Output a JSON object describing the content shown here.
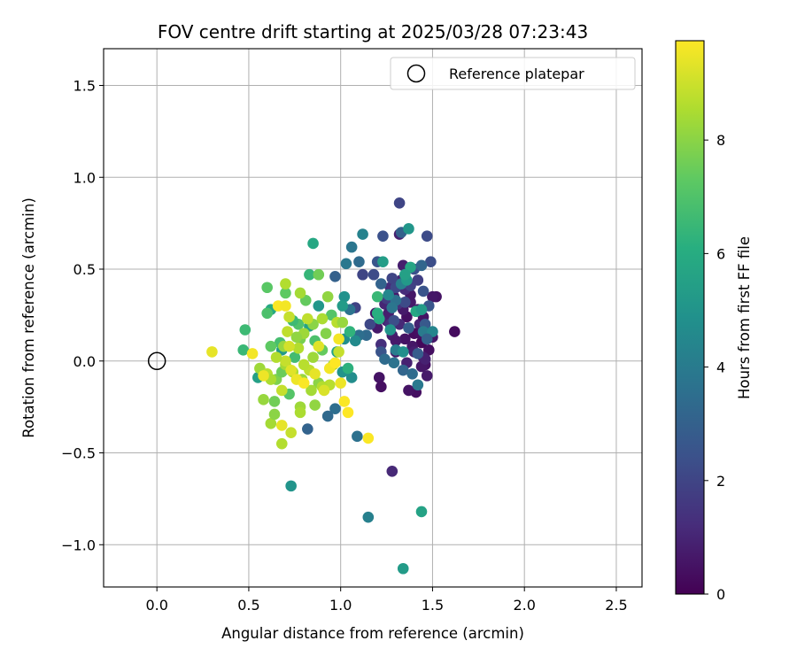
{
  "chart_data": {
    "type": "scatter",
    "title": "FOV centre drift starting at 2025/03/28 07:23:43",
    "xlabel": "Angular distance from reference (arcmin)",
    "ylabel": "Rotation from reference (arcmin)",
    "xlim": [
      -0.29,
      2.64
    ],
    "ylim": [
      -1.23,
      1.7
    ],
    "xticks": [
      0.0,
      0.5,
      1.0,
      1.5,
      2.0,
      2.5
    ],
    "yticks": [
      -1.0,
      -0.5,
      0.0,
      0.5,
      1.0,
      1.5
    ],
    "xtick_labels": [
      "0.0",
      "0.5",
      "1.0",
      "1.5",
      "2.0",
      "2.5"
    ],
    "ytick_labels": [
      "−1.0",
      "−0.5",
      "0.0",
      "0.5",
      "1.0",
      "1.5"
    ],
    "grid": true,
    "legend": {
      "placement": "top-right",
      "entries": [
        {
          "label": "Reference platepar",
          "marker": "open-circle"
        }
      ]
    },
    "reference_point": {
      "x": 0.0,
      "y": 0.0
    },
    "colorbar": {
      "label": "Hours from first FF file",
      "colormap": "viridis",
      "range": [
        0,
        9.75
      ],
      "ticks": [
        0,
        2,
        4,
        6,
        8
      ],
      "tick_labels": [
        "0",
        "2",
        "4",
        "6",
        "8"
      ]
    },
    "points": [
      [
        1.62,
        0.16,
        0.3
      ],
      [
        1.52,
        0.35,
        0.5
      ],
      [
        1.5,
        0.35,
        0.6
      ],
      [
        1.48,
        0.06,
        0.4
      ],
      [
        1.47,
        -0.08,
        0.7
      ],
      [
        1.46,
        -0.02,
        0.5
      ],
      [
        1.45,
        0.02,
        0.8
      ],
      [
        1.44,
        0.1,
        0.2
      ],
      [
        1.43,
        0.2,
        0.9
      ],
      [
        1.42,
        0.28,
        0.6
      ],
      [
        1.4,
        0.15,
        0.3
      ],
      [
        1.41,
        -0.17,
        0.4
      ],
      [
        1.39,
        0.08,
        0.6
      ],
      [
        1.38,
        0.32,
        0.7
      ],
      [
        1.36,
        0.24,
        0.4
      ],
      [
        1.35,
        0.12,
        0.5
      ],
      [
        1.34,
        0.52,
        0.8
      ],
      [
        1.33,
        0.44,
        1.0
      ],
      [
        1.32,
        0.69,
        0.9
      ],
      [
        1.32,
        0.2,
        1.1
      ],
      [
        1.3,
        0.05,
        0.6
      ],
      [
        1.29,
        0.35,
        0.7
      ],
      [
        1.28,
        0.14,
        0.8
      ],
      [
        1.27,
        0.4,
        1.2
      ],
      [
        1.25,
        0.22,
        0.9
      ],
      [
        1.24,
        0.31,
        1.0
      ],
      [
        1.22,
        0.09,
        1.3
      ],
      [
        1.21,
        -0.09,
        0.5
      ],
      [
        1.2,
        0.18,
        0.7
      ],
      [
        1.19,
        0.26,
        0.6
      ],
      [
        1.22,
        -0.14,
        0.4
      ],
      [
        1.37,
        -0.16,
        0.5
      ],
      [
        1.44,
        -0.03,
        0.6
      ],
      [
        1.45,
        0.24,
        0.5
      ],
      [
        1.38,
        0.36,
        0.6
      ],
      [
        1.34,
        0.28,
        0.7
      ],
      [
        1.4,
        0.05,
        0.8
      ],
      [
        1.43,
        0.15,
        0.4
      ],
      [
        1.5,
        0.13,
        0.6
      ],
      [
        1.36,
        -0.01,
        0.9
      ],
      [
        1.26,
        0.26,
        0.8
      ],
      [
        1.3,
        0.11,
        0.7
      ],
      [
        1.28,
        -0.6,
        1.1
      ],
      [
        1.46,
        0.01,
        0.9
      ],
      [
        1.35,
        0.39,
        1.2
      ],
      [
        1.31,
        0.31,
        1.4
      ],
      [
        1.27,
        0.2,
        1.3
      ],
      [
        1.32,
        0.86,
        2.0
      ],
      [
        1.49,
        0.54,
        2.3
      ],
      [
        1.47,
        0.68,
        2.2
      ],
      [
        1.42,
        0.44,
        1.8
      ],
      [
        1.38,
        0.41,
        1.9
      ],
      [
        1.3,
        0.4,
        2.1
      ],
      [
        1.25,
        0.34,
        1.7
      ],
      [
        1.18,
        0.47,
        2.2
      ],
      [
        1.23,
        0.68,
        2.4
      ],
      [
        1.12,
        0.47,
        2.0
      ],
      [
        1.08,
        0.29,
        1.9
      ],
      [
        1.45,
        0.38,
        2.5
      ],
      [
        1.48,
        0.3,
        2.6
      ],
      [
        1.4,
        0.5,
        2.4
      ],
      [
        1.28,
        0.45,
        2.0
      ],
      [
        1.35,
        0.32,
        2.2
      ],
      [
        1.22,
        0.05,
        2.5
      ],
      [
        1.16,
        0.2,
        2.1
      ],
      [
        1.46,
        0.2,
        2.7
      ],
      [
        1.42,
        0.04,
        2.8
      ],
      [
        1.2,
        0.54,
        2.6
      ],
      [
        1.29,
        0.22,
        2.3
      ],
      [
        1.37,
        0.18,
        2.9
      ],
      [
        1.33,
        0.7,
        3.0
      ],
      [
        1.44,
        0.52,
        3.2
      ],
      [
        1.1,
        0.54,
        3.4
      ],
      [
        1.06,
        0.62,
        3.8
      ],
      [
        1.12,
        0.69,
        4.3
      ],
      [
        1.22,
        0.42,
        3.1
      ],
      [
        1.14,
        0.14,
        3.3
      ],
      [
        1.1,
        0.14,
        3.5
      ],
      [
        1.05,
        0.28,
        3.7
      ],
      [
        1.03,
        0.53,
        3.9
      ],
      [
        0.97,
        0.46,
        3.0
      ],
      [
        1.3,
        0.33,
        3.6
      ],
      [
        1.34,
        -0.05,
        3.2
      ],
      [
        1.39,
        -0.07,
        3.4
      ],
      [
        1.45,
        0.16,
        4.0
      ],
      [
        1.5,
        0.16,
        4.4
      ],
      [
        1.33,
        0.42,
        4.2
      ],
      [
        1.28,
        0.29,
        3.8
      ],
      [
        0.97,
        -0.26,
        3.5
      ],
      [
        0.93,
        -0.3,
        3.3
      ],
      [
        0.82,
        -0.37,
        3.1
      ],
      [
        1.09,
        -0.41,
        3.6
      ],
      [
        1.29,
        -0.01,
        3.7
      ],
      [
        1.3,
        0.06,
        4.1
      ],
      [
        1.42,
        -0.13,
        3.9
      ],
      [
        1.24,
        0.01,
        3.4
      ],
      [
        1.47,
        0.12,
        3.0
      ],
      [
        1.26,
        0.36,
        4.5
      ],
      [
        1.15,
        -0.85,
        4.2
      ],
      [
        1.08,
        0.11,
        4.6
      ],
      [
        1.37,
        0.72,
        5.1
      ],
      [
        1.44,
        -0.82,
        5.6
      ],
      [
        1.34,
        -1.13,
        5.3
      ],
      [
        0.73,
        -0.68,
        5.0
      ],
      [
        1.23,
        0.54,
        5.4
      ],
      [
        1.36,
        0.44,
        5.2
      ],
      [
        1.38,
        0.51,
        5.7
      ],
      [
        1.35,
        0.47,
        5.5
      ],
      [
        1.41,
        0.27,
        5.8
      ],
      [
        1.21,
        0.23,
        5.9
      ],
      [
        1.02,
        0.35,
        4.9
      ],
      [
        1.01,
        0.3,
        5.3
      ],
      [
        1.02,
        0.12,
        4.8
      ],
      [
        0.98,
        0.05,
        5.6
      ],
      [
        1.06,
        -0.09,
        4.7
      ],
      [
        1.01,
        -0.06,
        5.0
      ],
      [
        0.85,
        0.64,
        5.8
      ],
      [
        0.68,
        0.06,
        5.2
      ],
      [
        0.55,
        -0.09,
        5.5
      ],
      [
        1.27,
        0.17,
        5.0
      ],
      [
        1.44,
        0.28,
        5.3
      ],
      [
        1.34,
        0.05,
        4.8
      ],
      [
        0.83,
        0.19,
        5.6
      ],
      [
        0.62,
        0.28,
        5.9
      ],
      [
        0.88,
        0.3,
        5.1
      ],
      [
        1.05,
        0.16,
        6.3
      ],
      [
        0.48,
        0.17,
        6.6
      ],
      [
        0.47,
        0.06,
        6.5
      ],
      [
        0.6,
        0.26,
        6.9
      ],
      [
        0.6,
        0.4,
        7.2
      ],
      [
        0.67,
        0.1,
        6.8
      ],
      [
        0.77,
        0.2,
        7.0
      ],
      [
        0.83,
        0.47,
        6.4
      ],
      [
        0.88,
        0.47,
        7.6
      ],
      [
        0.81,
        0.33,
        7.4
      ],
      [
        0.95,
        0.25,
        7.1
      ],
      [
        1.2,
        0.26,
        6.1
      ],
      [
        1.2,
        0.35,
        6.5
      ],
      [
        0.62,
        0.08,
        7.3
      ],
      [
        0.65,
        -0.1,
        7.8
      ],
      [
        0.68,
        -0.06,
        7.5
      ],
      [
        0.72,
        -0.18,
        7.1
      ],
      [
        0.75,
        0.02,
        6.7
      ],
      [
        0.78,
        0.12,
        7.7
      ],
      [
        0.86,
        0.11,
        6.9
      ],
      [
        0.9,
        0.06,
        7.4
      ],
      [
        0.92,
        0.15,
        7.9
      ],
      [
        1.04,
        -0.04,
        6.2
      ],
      [
        0.64,
        -0.22,
        7.6
      ],
      [
        0.7,
        0.37,
        7.3
      ],
      [
        0.74,
        0.22,
        6.6
      ],
      [
        0.58,
        -0.21,
        8.2
      ],
      [
        0.62,
        -0.34,
        8.4
      ],
      [
        0.64,
        -0.29,
        8.0
      ],
      [
        0.68,
        -0.45,
        8.6
      ],
      [
        0.73,
        -0.39,
        8.9
      ],
      [
        0.78,
        -0.25,
        8.3
      ],
      [
        0.78,
        -0.28,
        8.5
      ],
      [
        0.86,
        -0.24,
        8.1
      ],
      [
        0.94,
        -0.13,
        8.7
      ],
      [
        0.79,
        -0.1,
        8.2
      ],
      [
        0.83,
        -0.05,
        8.8
      ],
      [
        0.7,
        -0.02,
        8.4
      ],
      [
        0.7,
        0.0,
        8.9
      ],
      [
        0.77,
        0.07,
        8.6
      ],
      [
        0.8,
        0.15,
        8.3
      ],
      [
        0.85,
        0.2,
        8.0
      ],
      [
        0.9,
        0.23,
        8.5
      ],
      [
        0.93,
        0.35,
        8.1
      ],
      [
        0.98,
        0.21,
        8.7
      ],
      [
        1.01,
        0.21,
        8.2
      ],
      [
        0.72,
        0.24,
        8.9
      ],
      [
        0.78,
        0.37,
        8.4
      ],
      [
        0.7,
        0.42,
        8.6
      ],
      [
        0.82,
        0.23,
        8.8
      ],
      [
        0.56,
        -0.04,
        8.3
      ],
      [
        0.6,
        -0.07,
        8.7
      ],
      [
        0.74,
        -0.06,
        8.5
      ],
      [
        0.88,
        -0.12,
        8.0
      ],
      [
        0.96,
        -0.02,
        8.4
      ],
      [
        0.99,
        0.05,
        8.9
      ],
      [
        0.65,
        0.02,
        8.6
      ],
      [
        0.69,
        0.08,
        8.2
      ],
      [
        0.71,
        0.16,
        8.8
      ],
      [
        0.76,
        0.13,
        8.1
      ],
      [
        0.8,
        -0.02,
        8.7
      ],
      [
        0.85,
        0.02,
        8.3
      ],
      [
        0.62,
        -0.1,
        8.5
      ],
      [
        0.68,
        -0.16,
        8.9
      ],
      [
        0.84,
        -0.16,
        8.4
      ],
      [
        0.9,
        -0.14,
        8.6
      ],
      [
        0.3,
        0.05,
        9.4
      ],
      [
        0.52,
        0.04,
        9.6
      ],
      [
        0.58,
        -0.08,
        9.5
      ],
      [
        0.66,
        0.3,
        9.7
      ],
      [
        0.7,
        0.3,
        9.6
      ],
      [
        0.73,
        -0.05,
        9.3
      ],
      [
        0.76,
        -0.1,
        9.5
      ],
      [
        0.8,
        -0.12,
        9.7
      ],
      [
        0.86,
        -0.07,
        9.4
      ],
      [
        0.91,
        -0.16,
        9.2
      ],
      [
        0.99,
        0.12,
        9.6
      ],
      [
        1.0,
        -0.12,
        9.5
      ],
      [
        1.02,
        -0.22,
        9.7
      ],
      [
        1.04,
        -0.28,
        9.8
      ],
      [
        1.15,
        -0.42,
        9.7
      ],
      [
        0.68,
        -0.35,
        9.4
      ],
      [
        0.72,
        0.08,
        9.1
      ],
      [
        0.88,
        0.08,
        9.3
      ],
      [
        0.94,
        -0.04,
        9.6
      ],
      [
        0.97,
        -0.01,
        9.8
      ]
    ]
  }
}
